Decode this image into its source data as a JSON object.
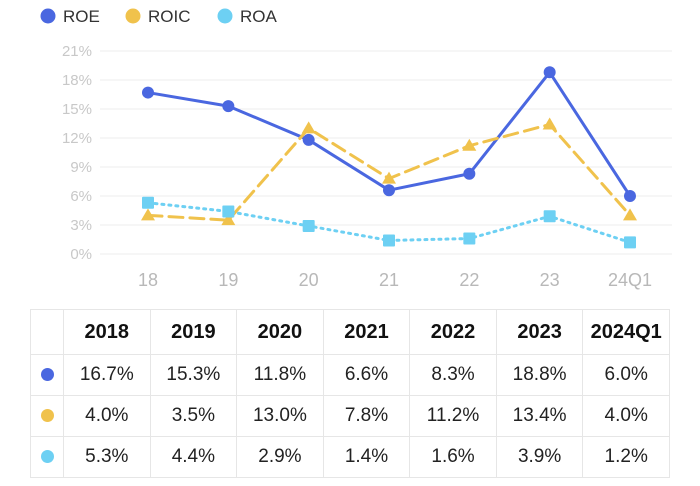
{
  "chart_data": {
    "type": "line",
    "categories": [
      "18",
      "19",
      "20",
      "21",
      "22",
      "23",
      "24Q1"
    ],
    "y_ticks": [
      "0%",
      "3%",
      "6%",
      "9%",
      "12%",
      "15%",
      "18%",
      "21%"
    ],
    "ylim": [
      0,
      21
    ],
    "grid": true,
    "legend_position": "top-left",
    "series": [
      {
        "name": "ROE",
        "color": "#4a67e0",
        "style": "solid",
        "marker": "circle",
        "values": [
          16.7,
          15.3,
          11.8,
          6.6,
          8.3,
          18.8,
          6.0
        ]
      },
      {
        "name": "ROIC",
        "color": "#f0c24c",
        "style": "dashed",
        "marker": "triangle",
        "values": [
          4.0,
          3.5,
          13.0,
          7.8,
          11.2,
          13.4,
          4.0
        ]
      },
      {
        "name": "ROA",
        "color": "#6dd0f3",
        "style": "dotted",
        "marker": "square",
        "values": [
          5.3,
          4.4,
          2.9,
          1.4,
          1.6,
          3.9,
          1.2
        ]
      }
    ]
  },
  "table": {
    "headers": [
      "",
      "2018",
      "2019",
      "2020",
      "2021",
      "2022",
      "2023",
      "2024Q1"
    ],
    "rows": [
      {
        "color": "#4a67e0",
        "cells": [
          "16.7%",
          "15.3%",
          "11.8%",
          "6.6%",
          "8.3%",
          "18.8%",
          "6.0%"
        ]
      },
      {
        "color": "#f0c24c",
        "cells": [
          "4.0%",
          "3.5%",
          "13.0%",
          "7.8%",
          "11.2%",
          "13.4%",
          "4.0%"
        ]
      },
      {
        "color": "#6dd0f3",
        "cells": [
          "5.3%",
          "4.4%",
          "2.9%",
          "1.4%",
          "1.6%",
          "3.9%",
          "1.2%"
        ]
      }
    ]
  }
}
